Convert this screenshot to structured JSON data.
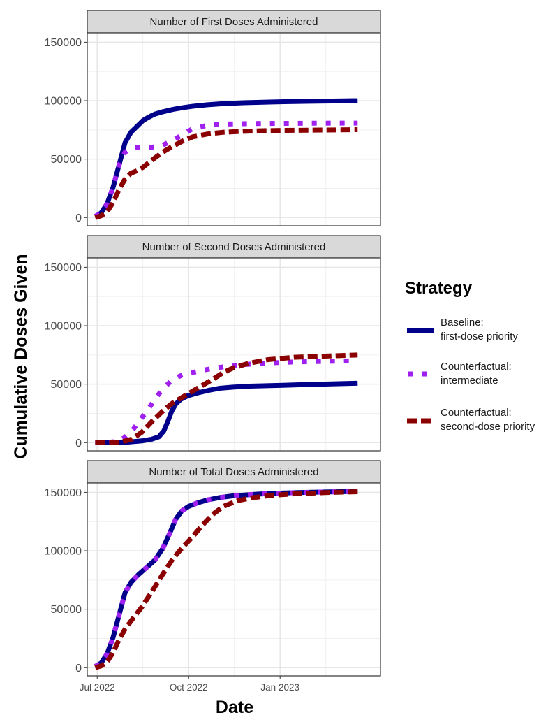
{
  "chart_data": {
    "type": "line",
    "x_type": "date",
    "ylabel": "Cumulative Doses Given",
    "xlabel": "Date",
    "x_ticks": [
      {
        "date": "2022-07-01",
        "label": "Jul 2022"
      },
      {
        "date": "2022-10-01",
        "label": "Oct 2022"
      },
      {
        "date": "2023-01-01",
        "label": "Jan 2023"
      }
    ],
    "xlim": [
      "2022-06-21",
      "2023-04-12"
    ],
    "ylim": [
      -7000,
      158000
    ],
    "y_ticks": [
      0,
      50000,
      100000,
      150000
    ],
    "grid": true,
    "legend": {
      "title": "Strategy",
      "position": "right",
      "entries": [
        {
          "line1": "Baseline:",
          "line2": "first-dose priority",
          "color": "#00008B",
          "style": "solid"
        },
        {
          "line1": "Counterfactual:",
          "line2": "intermediate",
          "color": "#A020F0",
          "style": "dotted"
        },
        {
          "line1": "Counterfactual:",
          "line2": "second-dose priority",
          "color": "#8B0000",
          "style": "dashed"
        }
      ]
    },
    "panels": [
      {
        "title": "Number of First Doses Administered",
        "series": [
          {
            "name": "Baseline: first-dose priority",
            "color": "#00008B",
            "style": "solid",
            "x": [
              "2022-06-29",
              "2022-07-05",
              "2022-07-11",
              "2022-07-17",
              "2022-07-23",
              "2022-07-29",
              "2022-08-04",
              "2022-08-10",
              "2022-08-16",
              "2022-08-22",
              "2022-08-28",
              "2022-09-05",
              "2022-09-15",
              "2022-09-25",
              "2022-10-05",
              "2022-10-20",
              "2022-11-05",
              "2022-11-25",
              "2022-12-15",
              "2023-01-05",
              "2023-02-01",
              "2023-03-01",
              "2023-03-20"
            ],
            "y": [
              1000,
              4000,
              12000,
              26000,
              45000,
              64000,
              73000,
              78000,
              83000,
              86000,
              88500,
              90500,
              92500,
              94000,
              95200,
              96500,
              97500,
              98200,
              98700,
              99100,
              99500,
              99800,
              100000
            ]
          },
          {
            "name": "Counterfactual: intermediate",
            "color": "#A020F0",
            "style": "dotted",
            "x": [
              "2022-06-29",
              "2022-07-05",
              "2022-07-11",
              "2022-07-17",
              "2022-07-23",
              "2022-07-29",
              "2022-08-04",
              "2022-08-10",
              "2022-08-16",
              "2022-08-22",
              "2022-08-28",
              "2022-09-05",
              "2022-09-15",
              "2022-09-25",
              "2022-10-05",
              "2022-10-20",
              "2022-11-05",
              "2022-11-25",
              "2022-12-15",
              "2023-01-05",
              "2023-02-01",
              "2023-03-01",
              "2023-03-20"
            ],
            "y": [
              1000,
              4000,
              12000,
              26000,
              45000,
              56000,
              59000,
              60000,
              60000,
              60000,
              60500,
              62000,
              66000,
              71000,
              76000,
              79000,
              80000,
              80300,
              80500,
              80600,
              80700,
              80800,
              80800
            ]
          },
          {
            "name": "Counterfactual: second-dose priority",
            "color": "#8B0000",
            "style": "dashed",
            "x": [
              "2022-06-29",
              "2022-07-05",
              "2022-07-11",
              "2022-07-17",
              "2022-07-23",
              "2022-07-29",
              "2022-08-04",
              "2022-08-10",
              "2022-08-16",
              "2022-08-22",
              "2022-08-28",
              "2022-09-05",
              "2022-09-15",
              "2022-09-25",
              "2022-10-05",
              "2022-10-20",
              "2022-11-05",
              "2022-11-25",
              "2022-12-15",
              "2023-01-05",
              "2023-02-01",
              "2023-03-01",
              "2023-03-20"
            ],
            "y": [
              0,
              1500,
              5000,
              13000,
              24000,
              33000,
              38000,
              40000,
              43000,
              47000,
              51000,
              56000,
              61000,
              65500,
              69000,
              71500,
              73000,
              73800,
              74300,
              74600,
              74800,
              75000,
              75200
            ]
          }
        ]
      },
      {
        "title": "Number of Second Doses Administered",
        "series": [
          {
            "name": "Baseline: first-dose priority",
            "color": "#00008B",
            "style": "solid",
            "x": [
              "2022-06-29",
              "2022-07-15",
              "2022-08-01",
              "2022-08-15",
              "2022-08-25",
              "2022-09-01",
              "2022-09-06",
              "2022-09-10",
              "2022-09-14",
              "2022-09-18",
              "2022-09-23",
              "2022-09-30",
              "2022-10-10",
              "2022-10-20",
              "2022-11-01",
              "2022-11-15",
              "2022-12-01",
              "2023-01-01",
              "2023-02-01",
              "2023-03-01",
              "2023-03-20"
            ],
            "y": [
              0,
              0,
              500,
              1500,
              3000,
              5000,
              10000,
              18000,
              27000,
              33000,
              37000,
              40000,
              42500,
              44500,
              46500,
              47500,
              48300,
              49000,
              49800,
              50400,
              50800
            ]
          },
          {
            "name": "Counterfactual: intermediate",
            "color": "#A020F0",
            "style": "dotted",
            "x": [
              "2022-06-29",
              "2022-07-10",
              "2022-07-20",
              "2022-07-28",
              "2022-08-05",
              "2022-08-12",
              "2022-08-20",
              "2022-08-28",
              "2022-09-05",
              "2022-09-15",
              "2022-09-25",
              "2022-10-10",
              "2022-10-25",
              "2022-11-15",
              "2022-12-15",
              "2023-01-15",
              "2023-02-15",
              "2023-03-20"
            ],
            "y": [
              0,
              0,
              1000,
              4000,
              10000,
              18000,
              27000,
              37000,
              46000,
              54000,
              58000,
              61000,
              63500,
              66000,
              68000,
              69000,
              69500,
              70000
            ]
          },
          {
            "name": "Counterfactual: second-dose priority",
            "color": "#8B0000",
            "style": "dashed",
            "x": [
              "2022-06-29",
              "2022-07-15",
              "2022-07-25",
              "2022-08-05",
              "2022-08-15",
              "2022-08-25",
              "2022-09-05",
              "2022-09-15",
              "2022-09-25",
              "2022-10-05",
              "2022-10-15",
              "2022-10-25",
              "2022-11-05",
              "2022-11-15",
              "2022-12-01",
              "2022-12-20",
              "2023-01-15",
              "2023-02-15",
              "2023-03-20"
            ],
            "y": [
              0,
              0,
              500,
              3000,
              9000,
              18000,
              27000,
              34000,
              39000,
              44000,
              49000,
              54000,
              60000,
              64000,
              68000,
              71000,
              73000,
              74000,
              75000
            ]
          }
        ]
      },
      {
        "title": "Number of Total Doses Administered",
        "series": [
          {
            "name": "Baseline: first-dose priority",
            "color": "#00008B",
            "style": "solid",
            "x": [
              "2022-06-29",
              "2022-07-05",
              "2022-07-11",
              "2022-07-17",
              "2022-07-23",
              "2022-07-29",
              "2022-08-04",
              "2022-08-12",
              "2022-08-20",
              "2022-08-28",
              "2022-09-05",
              "2022-09-12",
              "2022-09-18",
              "2022-09-24",
              "2022-10-01",
              "2022-10-10",
              "2022-10-20",
              "2022-11-01",
              "2022-11-15",
              "2022-12-01",
              "2022-12-20",
              "2023-01-15",
              "2023-02-15",
              "2023-03-20"
            ],
            "y": [
              1000,
              4000,
              12000,
              26000,
              45000,
              64000,
              73000,
              80000,
              86000,
              92000,
              102000,
              115000,
              127000,
              134000,
              138000,
              141000,
              143500,
              145500,
              147000,
              148000,
              149000,
              149700,
              150300,
              150800
            ]
          },
          {
            "name": "Counterfactual: intermediate",
            "color": "#A020F0",
            "style": "dotted",
            "x": [
              "2022-06-29",
              "2022-07-05",
              "2022-07-11",
              "2022-07-17",
              "2022-07-23",
              "2022-07-29",
              "2022-08-04",
              "2022-08-12",
              "2022-08-20",
              "2022-08-28",
              "2022-09-05",
              "2022-09-12",
              "2022-09-18",
              "2022-09-24",
              "2022-10-01",
              "2022-10-10",
              "2022-10-20",
              "2022-11-01",
              "2022-11-15",
              "2022-12-01",
              "2022-12-20",
              "2023-01-15",
              "2023-02-15",
              "2023-03-20"
            ],
            "y": [
              1000,
              4000,
              12000,
              26000,
              45000,
              64000,
              73000,
              80000,
              86000,
              92000,
              102000,
              115000,
              127000,
              134000,
              138000,
              141000,
              143500,
              145500,
              147000,
              148000,
              149000,
              149700,
              150300,
              150800
            ]
          },
          {
            "name": "Counterfactual: second-dose priority",
            "color": "#8B0000",
            "style": "dashed",
            "x": [
              "2022-06-29",
              "2022-07-05",
              "2022-07-11",
              "2022-07-17",
              "2022-07-23",
              "2022-07-29",
              "2022-08-05",
              "2022-08-15",
              "2022-08-25",
              "2022-09-05",
              "2022-09-15",
              "2022-09-25",
              "2022-10-05",
              "2022-10-15",
              "2022-10-25",
              "2022-11-05",
              "2022-11-20",
              "2022-12-05",
              "2022-12-25",
              "2023-01-15",
              "2023-02-15",
              "2023-03-20"
            ],
            "y": [
              0,
              1500,
              5000,
              13000,
              24000,
              33000,
              41000,
              52000,
              65000,
              80000,
              93000,
              103000,
              112000,
              122000,
              131000,
              138000,
              143000,
              145500,
              147500,
              148700,
              149800,
              150500
            ]
          }
        ]
      }
    ]
  }
}
